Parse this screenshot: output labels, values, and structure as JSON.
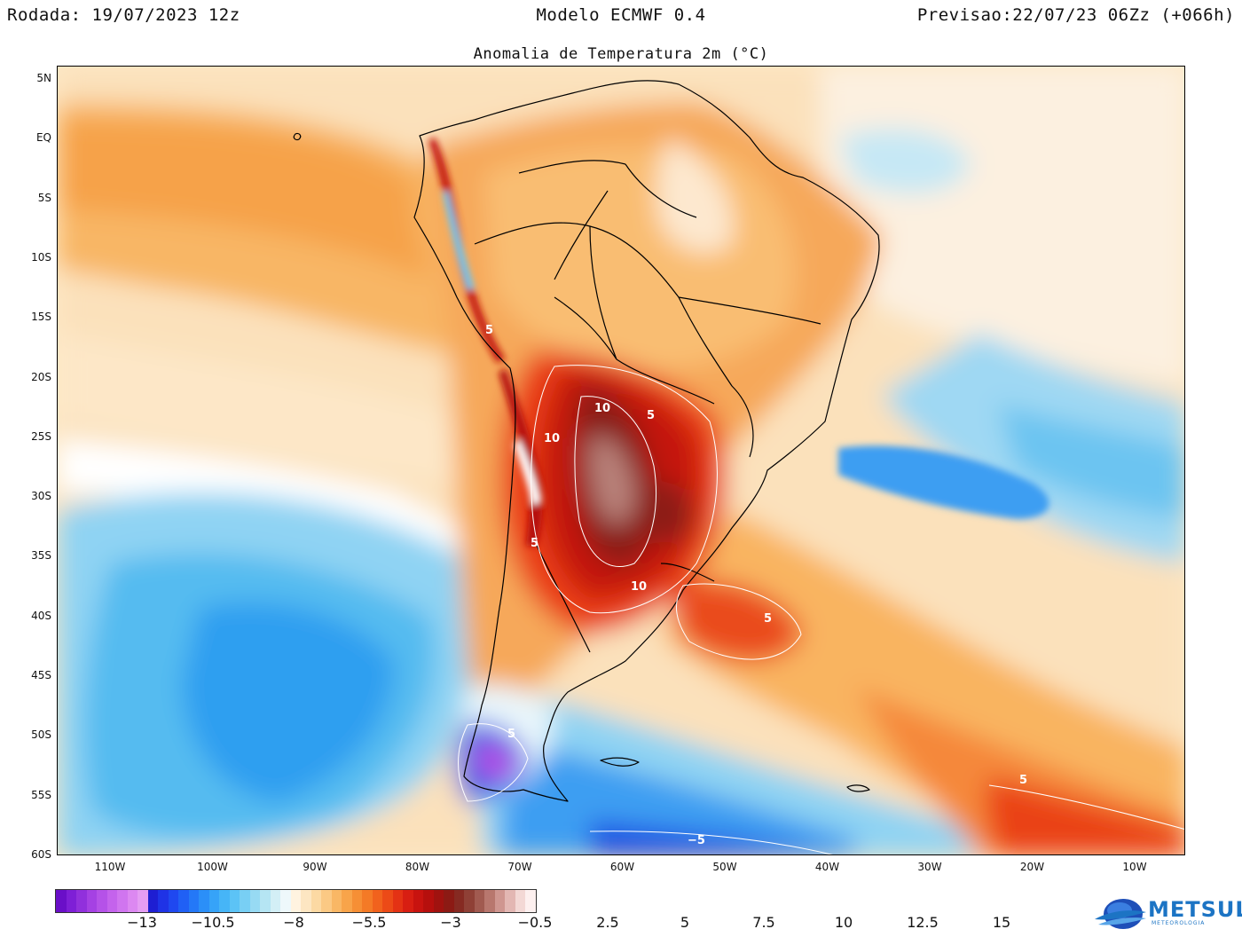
{
  "header": {
    "run": "Rodada: 19/07/2023 12z",
    "model": "Modelo ECMWF 0.4",
    "forecast": "Previsao:22/07/23 06Zz (+066h)"
  },
  "map": {
    "title": "Anomalia de Temperatura 2m (°C)",
    "latitude_labels": [
      "5N",
      "EQ",
      "5S",
      "10S",
      "15S",
      "20S",
      "25S",
      "30S",
      "35S",
      "40S",
      "45S",
      "50S",
      "55S",
      "60S"
    ],
    "longitude_labels": [
      "110W",
      "100W",
      "90W",
      "80W",
      "70W",
      "60W",
      "50W",
      "40W",
      "30W",
      "20W",
      "10W"
    ],
    "contour_labels": [
      {
        "text": "10",
        "label": "contour-10-paraguay"
      },
      {
        "text": "5",
        "label": "contour-5-brazil"
      },
      {
        "text": "10",
        "label": "contour-10-andes"
      },
      {
        "text": "5",
        "label": "contour-5-cuyo"
      },
      {
        "text": "10",
        "label": "contour-10-pampas"
      },
      {
        "text": "5",
        "label": "contour-5-atlantic"
      },
      {
        "text": "5",
        "label": "contour-5-patagonia"
      },
      {
        "text": "5",
        "label": "contour-5-south-atlantic"
      },
      {
        "text": "−5",
        "label": "contour-minus5-southern-ocean"
      },
      {
        "text": "5",
        "label": "contour-5-peru"
      }
    ]
  },
  "colorbar": {
    "colors": [
      "#6a0fc8",
      "#7e1fd6",
      "#9130dc",
      "#a541e3",
      "#b552e8",
      "#c463ec",
      "#d075ef",
      "#dc88f1",
      "#e59df3",
      "#1e1ed2",
      "#1f33e6",
      "#1f48f0",
      "#2060f5",
      "#2478f7",
      "#2b8ff8",
      "#36a3f8",
      "#46b5f7",
      "#5cc3f6",
      "#78cff4",
      "#97daf3",
      "#b5e5f3",
      "#d3eff6",
      "#eef8fb",
      "#fff3e0",
      "#fde6c2",
      "#fcd9a3",
      "#fbc984",
      "#f9b765",
      "#f8a44a",
      "#f68f35",
      "#f47a26",
      "#f1621d",
      "#ec4a17",
      "#e43214",
      "#d81e12",
      "#c8130f",
      "#b60f0d",
      "#a0120f",
      "#8c1a14",
      "#862a22",
      "#8f4036",
      "#a15a50",
      "#b8776e",
      "#cf9690",
      "#e3b7b3",
      "#f3d8d5",
      "#fdf0ef"
    ],
    "tick_labels": [
      "−13",
      "−10.5",
      "−8",
      "−5.5",
      "−3",
      "−0.5",
      "2.5",
      "5",
      "7.5",
      "10",
      "12.5",
      "15"
    ]
  },
  "logo": {
    "name": "METSUL",
    "subtitle": "METEOROLOGIA"
  }
}
